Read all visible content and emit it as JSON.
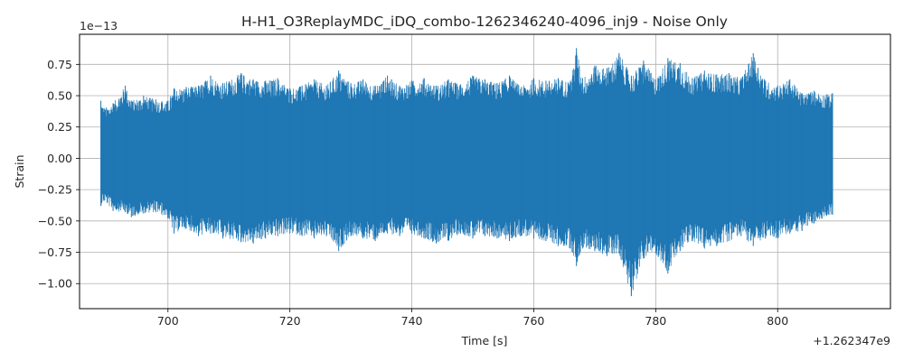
{
  "chart_data": {
    "type": "line",
    "title": "H-H1_O3ReplayMDC_iDQ_combo-1262346240-4096_inj9 - Noise Only",
    "xlabel": "Time [s]",
    "ylabel": "Strain",
    "x_offset_label": "+1.262347e9",
    "y_scale_label": "1e−13",
    "xlim": [
      685.5,
      818.5
    ],
    "ylim": [
      -1.2,
      0.99
    ],
    "x_ticks": [
      700,
      720,
      740,
      760,
      780,
      800
    ],
    "x_tick_labels": [
      "700",
      "720",
      "740",
      "760",
      "780",
      "800"
    ],
    "y_ticks": [
      -1.0,
      -0.75,
      -0.5,
      -0.25,
      0.0,
      0.25,
      0.5,
      0.75
    ],
    "y_tick_labels": [
      "−1.00",
      "−0.75",
      "−0.50",
      "−0.25",
      "0.00",
      "0.25",
      "0.50",
      "0.75"
    ],
    "grid": true,
    "series": [
      {
        "color": "#1f77b4",
        "x_range": [
          689,
          809
        ],
        "upper": [
          [
            689.0,
            0.46
          ],
          [
            689.5,
            0.4
          ],
          [
            691.0,
            0.44
          ],
          [
            693.0,
            0.58
          ],
          [
            694.0,
            0.46
          ],
          [
            696.0,
            0.5
          ],
          [
            698.0,
            0.47
          ],
          [
            700.0,
            0.46
          ],
          [
            701.0,
            0.56
          ],
          [
            703.0,
            0.57
          ],
          [
            705.0,
            0.58
          ],
          [
            707.0,
            0.66
          ],
          [
            709.0,
            0.6
          ],
          [
            712.0,
            0.68
          ],
          [
            714.0,
            0.63
          ],
          [
            716.0,
            0.62
          ],
          [
            718.0,
            0.64
          ],
          [
            720.0,
            0.56
          ],
          [
            722.0,
            0.58
          ],
          [
            724.0,
            0.63
          ],
          [
            726.0,
            0.58
          ],
          [
            728.0,
            0.7
          ],
          [
            730.0,
            0.6
          ],
          [
            732.0,
            0.63
          ],
          [
            734.0,
            0.58
          ],
          [
            736.0,
            0.66
          ],
          [
            738.0,
            0.58
          ],
          [
            740.0,
            0.62
          ],
          [
            742.0,
            0.64
          ],
          [
            744.0,
            0.58
          ],
          [
            746.0,
            0.63
          ],
          [
            748.0,
            0.59
          ],
          [
            750.0,
            0.66
          ],
          [
            752.0,
            0.63
          ],
          [
            754.0,
            0.6
          ],
          [
            756.0,
            0.66
          ],
          [
            758.0,
            0.57
          ],
          [
            760.0,
            0.64
          ],
          [
            762.0,
            0.62
          ],
          [
            764.0,
            0.64
          ],
          [
            766.0,
            0.62
          ],
          [
            767.0,
            0.88
          ],
          [
            768.0,
            0.64
          ],
          [
            770.0,
            0.74
          ],
          [
            772.0,
            0.72
          ],
          [
            774.0,
            0.84
          ],
          [
            776.0,
            0.66
          ],
          [
            778.0,
            0.78
          ],
          [
            780.0,
            0.63
          ],
          [
            782.0,
            0.8
          ],
          [
            784.0,
            0.76
          ],
          [
            786.0,
            0.64
          ],
          [
            788.0,
            0.7
          ],
          [
            790.0,
            0.67
          ],
          [
            792.0,
            0.68
          ],
          [
            794.0,
            0.64
          ],
          [
            796.0,
            0.84
          ],
          [
            798.0,
            0.62
          ],
          [
            800.0,
            0.58
          ],
          [
            802.0,
            0.63
          ],
          [
            804.0,
            0.52
          ],
          [
            806.0,
            0.54
          ],
          [
            808.0,
            0.51
          ],
          [
            809.0,
            0.52
          ]
        ],
        "lower": [
          [
            689.0,
            -0.38
          ],
          [
            689.5,
            -0.34
          ],
          [
            691.0,
            -0.42
          ],
          [
            693.0,
            -0.43
          ],
          [
            694.0,
            -0.47
          ],
          [
            696.0,
            -0.44
          ],
          [
            698.0,
            -0.43
          ],
          [
            700.0,
            -0.48
          ],
          [
            701.0,
            -0.6
          ],
          [
            703.0,
            -0.56
          ],
          [
            705.0,
            -0.62
          ],
          [
            707.0,
            -0.6
          ],
          [
            709.0,
            -0.64
          ],
          [
            712.0,
            -0.67
          ],
          [
            714.0,
            -0.68
          ],
          [
            716.0,
            -0.64
          ],
          [
            718.0,
            -0.62
          ],
          [
            720.0,
            -0.6
          ],
          [
            722.0,
            -0.62
          ],
          [
            724.0,
            -0.64
          ],
          [
            726.0,
            -0.62
          ],
          [
            728.0,
            -0.74
          ],
          [
            730.0,
            -0.62
          ],
          [
            732.0,
            -0.64
          ],
          [
            734.0,
            -0.66
          ],
          [
            736.0,
            -0.6
          ],
          [
            738.0,
            -0.62
          ],
          [
            740.0,
            -0.6
          ],
          [
            742.0,
            -0.64
          ],
          [
            744.0,
            -0.68
          ],
          [
            746.0,
            -0.66
          ],
          [
            748.0,
            -0.6
          ],
          [
            750.0,
            -0.64
          ],
          [
            752.0,
            -0.62
          ],
          [
            754.0,
            -0.64
          ],
          [
            756.0,
            -0.66
          ],
          [
            758.0,
            -0.62
          ],
          [
            760.0,
            -0.64
          ],
          [
            762.0,
            -0.66
          ],
          [
            764.0,
            -0.7
          ],
          [
            766.0,
            -0.72
          ],
          [
            767.0,
            -0.86
          ],
          [
            768.0,
            -0.72
          ],
          [
            770.0,
            -0.74
          ],
          [
            772.0,
            -0.78
          ],
          [
            774.0,
            -0.76
          ],
          [
            776.0,
            -1.1
          ],
          [
            778.0,
            -0.8
          ],
          [
            780.0,
            -0.76
          ],
          [
            782.0,
            -0.92
          ],
          [
            784.0,
            -0.74
          ],
          [
            786.0,
            -0.66
          ],
          [
            788.0,
            -0.72
          ],
          [
            790.0,
            -0.7
          ],
          [
            792.0,
            -0.66
          ],
          [
            794.0,
            -0.62
          ],
          [
            796.0,
            -0.7
          ],
          [
            798.0,
            -0.64
          ],
          [
            800.0,
            -0.64
          ],
          [
            802.0,
            -0.6
          ],
          [
            804.0,
            -0.58
          ],
          [
            806.0,
            -0.52
          ],
          [
            808.0,
            -0.46
          ],
          [
            809.0,
            -0.45
          ]
        ]
      }
    ]
  }
}
